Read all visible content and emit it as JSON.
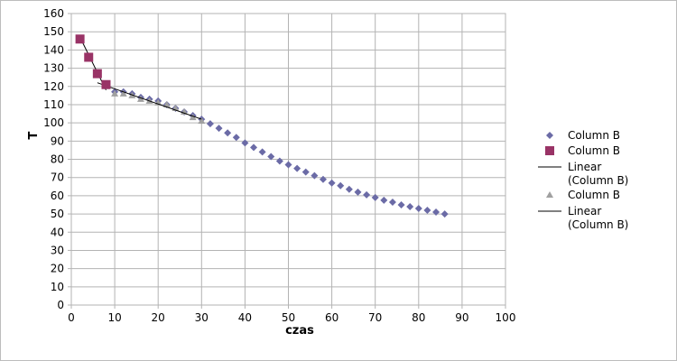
{
  "chart_data": {
    "type": "scatter",
    "xlabel": "czas",
    "ylabel": "T",
    "xlim": [
      0,
      100
    ],
    "ylim": [
      0,
      160
    ],
    "xticks": [
      "0",
      "10",
      "20",
      "30",
      "40",
      "50",
      "60",
      "70",
      "80",
      "90",
      "100"
    ],
    "yticks": [
      "0",
      "10",
      "20",
      "30",
      "40",
      "50",
      "60",
      "70",
      "80",
      "90",
      "100",
      "110",
      "120",
      "130",
      "140",
      "150",
      "160"
    ],
    "grid": true,
    "legend_position": "right",
    "series": [
      {
        "name": "Column B",
        "marker": "diamond",
        "color": "#6b6ba6",
        "x": [
          2,
          4,
          6,
          8,
          10,
          12,
          14,
          16,
          18,
          20,
          22,
          24,
          26,
          28,
          30,
          32,
          34,
          36,
          38,
          40,
          42,
          44,
          46,
          48,
          50,
          52,
          54,
          56,
          58,
          60,
          62,
          64,
          66,
          68,
          70,
          72,
          74,
          76,
          78,
          80,
          82,
          84,
          86
        ],
        "y": [
          146,
          136,
          127,
          121,
          117,
          117,
          116,
          114,
          113,
          112,
          110,
          108,
          106,
          104,
          102,
          99.5,
          97,
          94.5,
          92,
          89,
          86.5,
          84,
          81.5,
          79,
          77,
          75,
          73,
          71,
          69,
          67,
          65.5,
          63.5,
          62,
          60.5,
          59,
          57.5,
          56.5,
          55,
          54,
          53,
          52,
          51,
          50
        ]
      },
      {
        "name": "Column B",
        "marker": "square",
        "color": "#993366",
        "x": [
          2,
          4,
          6,
          8
        ],
        "y": [
          146,
          136,
          127,
          121
        ]
      },
      {
        "name": "Linear (Column B)",
        "type": "line",
        "color": "#000000",
        "x": [
          2,
          8
        ],
        "y": [
          147,
          118
        ]
      },
      {
        "name": "Column B",
        "marker": "triangle",
        "color": "#a0a0a0",
        "x": [
          10,
          12,
          14,
          16,
          18,
          20,
          22,
          24,
          26,
          28,
          30
        ],
        "y": [
          116,
          116,
          115,
          113,
          112,
          111,
          110,
          108,
          106,
          103,
          101
        ]
      },
      {
        "name": "Linear (Column B)",
        "type": "line",
        "color": "#000000",
        "x": [
          6,
          30
        ],
        "y": [
          122,
          102
        ]
      }
    ],
    "legend": [
      {
        "label": "Column B",
        "marker": "diamond",
        "color": "#6b6ba6"
      },
      {
        "label": "Column B",
        "marker": "square",
        "color": "#993366"
      },
      {
        "label": "Linear\n(Column B)",
        "marker": "line",
        "color": "#000000"
      },
      {
        "label": "Column B",
        "marker": "triangle",
        "color": "#a0a0a0"
      },
      {
        "label": "Linear\n(Column B)",
        "marker": "line",
        "color": "#000000"
      }
    ]
  }
}
